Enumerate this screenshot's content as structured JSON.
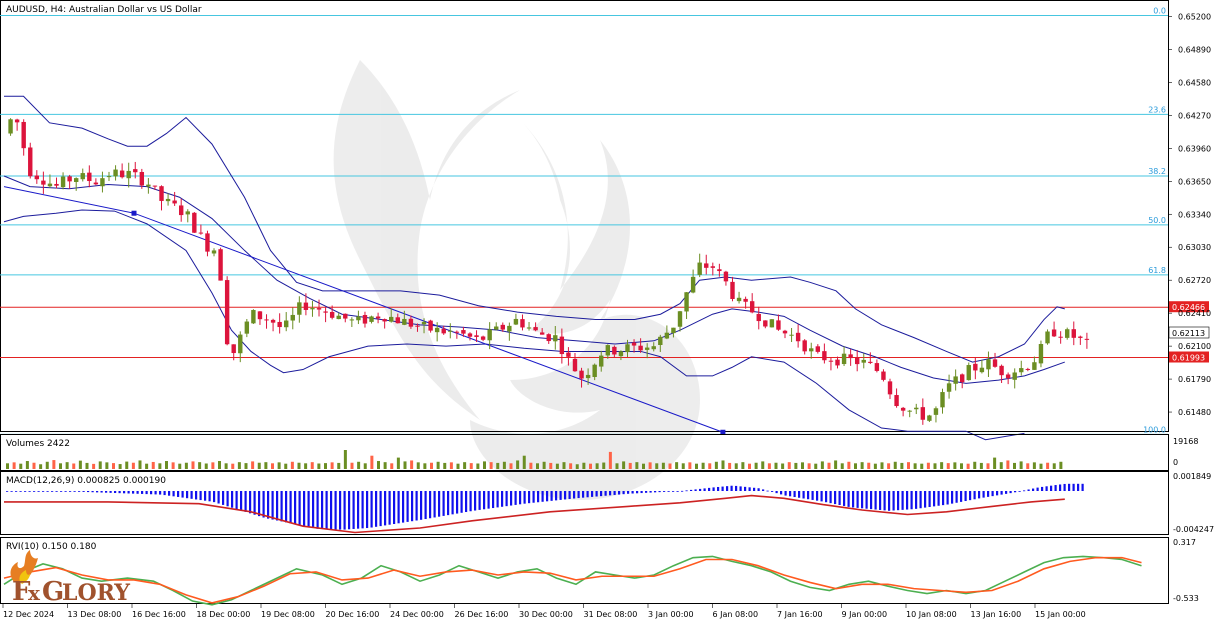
{
  "chart_title": "AUDUSD, H4:  Australian Dollar vs US Dollar",
  "colors": {
    "bull": "#6b8e23",
    "bear": "#dc143c",
    "bollinger": "#1c1c9c",
    "fib": "#46c6e0",
    "sr": "#e32222",
    "macd_hist": "#1010ee",
    "macd_signal": "#cc2222",
    "rvi_main": "#4caf50",
    "rvi_signal": "#ff5a1f",
    "vol_up": "#6b8e23",
    "vol_down": "#ff6347"
  },
  "price_axis": {
    "ticks": [
      "0.65200",
      "0.64890",
      "0.64580",
      "0.64270",
      "0.63960",
      "0.63650",
      "0.63340",
      "0.63030",
      "0.62720",
      "0.62410",
      "0.62100",
      "0.61790",
      "0.61480"
    ],
    "range": [
      0.6133,
      0.6528
    ]
  },
  "fib_levels": [
    {
      "label": "0.0",
      "price": 0.6521
    },
    {
      "label": "23.6",
      "price": 0.6428
    },
    {
      "label": "38.2",
      "price": 0.637
    },
    {
      "label": "50.0",
      "price": 0.6324
    },
    {
      "label": "61.8",
      "price": 0.6277
    },
    {
      "label": "100.0",
      "price": 0.6127
    }
  ],
  "sr_levels": [
    {
      "label": "0.62466",
      "price": 0.62466
    },
    {
      "label": "0.61993",
      "price": 0.61993
    }
  ],
  "current_price": "0.62113",
  "x_labels": [
    "12 Dec 2024",
    "13 Dec 08:00",
    "16 Dec 16:00",
    "18 Dec 00:00",
    "19 Dec 08:00",
    "20 Dec 16:00",
    "24 Dec 00:00",
    "26 Dec 16:00",
    "30 Dec 00:00",
    "31 Dec 08:00",
    "3 Jan 00:00",
    "6 Jan 08:00",
    "7 Jan 16:00",
    "9 Jan 00:00",
    "10 Jan 08:00",
    "13 Jan 16:00",
    "15 Jan 00:00"
  ],
  "volume_pane": {
    "label": "Volumes 2422",
    "ticks": [
      "19168",
      "0"
    ]
  },
  "macd_pane": {
    "label": "MACD(12,26,9) 0.000825 0.000190",
    "ticks": [
      "0.001849",
      "-0.004247"
    ]
  },
  "rvi_pane": {
    "label": "RVI(10) 0.150 0.180",
    "ticks": [
      "0.317",
      "-0.533"
    ]
  },
  "logo": {
    "text": "FxGlory"
  },
  "chart_data": {
    "type": "candlestick",
    "title": "AUDUSD, H4:  Australian Dollar vs US Dollar",
    "x_range": [
      "12 Dec 2024",
      "15 Jan 00:00"
    ],
    "ylim": [
      0.6133,
      0.6528
    ],
    "price_path": [
      [
        0,
        0.641
      ],
      [
        8,
        0.643
      ],
      [
        20,
        0.6375
      ],
      [
        40,
        0.636
      ],
      [
        55,
        0.637
      ],
      [
        70,
        0.6365
      ],
      [
        80,
        0.6372
      ],
      [
        95,
        0.6372
      ],
      [
        110,
        0.6365
      ],
      [
        120,
        0.6348
      ],
      [
        140,
        0.6335
      ],
      [
        155,
        0.6305
      ],
      [
        165,
        0.63
      ],
      [
        170,
        0.6225
      ],
      [
        175,
        0.62
      ],
      [
        190,
        0.624
      ],
      [
        205,
        0.6235
      ],
      [
        215,
        0.6225
      ],
      [
        230,
        0.625
      ],
      [
        250,
        0.6242
      ],
      [
        270,
        0.6232
      ],
      [
        290,
        0.624
      ],
      [
        310,
        0.6232
      ],
      [
        330,
        0.6225
      ],
      [
        350,
        0.6222
      ],
      [
        365,
        0.6215
      ],
      [
        380,
        0.6225
      ],
      [
        395,
        0.6235
      ],
      [
        410,
        0.6222
      ],
      [
        425,
        0.6218
      ],
      [
        435,
        0.6195
      ],
      [
        445,
        0.618
      ],
      [
        460,
        0.6205
      ],
      [
        480,
        0.6208
      ],
      [
        500,
        0.621
      ],
      [
        515,
        0.623
      ],
      [
        525,
        0.626
      ],
      [
        535,
        0.6285
      ],
      [
        545,
        0.6285
      ],
      [
        555,
        0.627
      ],
      [
        565,
        0.625
      ],
      [
        580,
        0.624
      ],
      [
        595,
        0.6225
      ],
      [
        610,
        0.6218
      ],
      [
        625,
        0.62
      ],
      [
        640,
        0.6198
      ],
      [
        660,
        0.6195
      ],
      [
        675,
        0.6185
      ],
      [
        685,
        0.616
      ],
      [
        695,
        0.615
      ],
      [
        705,
        0.6145
      ],
      [
        715,
        0.6145
      ],
      [
        725,
        0.617
      ],
      [
        740,
        0.6185
      ],
      [
        755,
        0.6195
      ],
      [
        770,
        0.6185
      ],
      [
        785,
        0.619
      ],
      [
        795,
        0.62
      ],
      [
        805,
        0.6225
      ],
      [
        815,
        0.6222
      ],
      [
        825,
        0.6218
      ],
      [
        833,
        0.6211
      ]
    ],
    "bollinger_upper": [
      [
        0,
        0.6445
      ],
      [
        15,
        0.6445
      ],
      [
        35,
        0.642
      ],
      [
        60,
        0.6415
      ],
      [
        80,
        0.6405
      ],
      [
        95,
        0.6398
      ],
      [
        110,
        0.6398
      ],
      [
        125,
        0.641
      ],
      [
        140,
        0.6425
      ],
      [
        160,
        0.64
      ],
      [
        185,
        0.635
      ],
      [
        205,
        0.63
      ],
      [
        225,
        0.627
      ],
      [
        245,
        0.6262
      ],
      [
        275,
        0.6262
      ],
      [
        305,
        0.6262
      ],
      [
        335,
        0.6258
      ],
      [
        365,
        0.6248
      ],
      [
        395,
        0.6242
      ],
      [
        425,
        0.6238
      ],
      [
        455,
        0.6235
      ],
      [
        485,
        0.6235
      ],
      [
        505,
        0.624
      ],
      [
        520,
        0.625
      ],
      [
        535,
        0.6272
      ],
      [
        555,
        0.6275
      ],
      [
        575,
        0.6272
      ],
      [
        605,
        0.6275
      ],
      [
        620,
        0.627
      ],
      [
        640,
        0.6262
      ],
      [
        655,
        0.6245
      ],
      [
        675,
        0.623
      ],
      [
        700,
        0.6218
      ],
      [
        725,
        0.6205
      ],
      [
        745,
        0.6195
      ],
      [
        765,
        0.62
      ],
      [
        785,
        0.6212
      ],
      [
        800,
        0.6235
      ],
      [
        810,
        0.6247
      ],
      [
        816,
        0.6245
      ]
    ],
    "bollinger_middle": [
      [
        0,
        0.637
      ],
      [
        20,
        0.636
      ],
      [
        50,
        0.6358
      ],
      [
        80,
        0.6362
      ],
      [
        110,
        0.636
      ],
      [
        135,
        0.635
      ],
      [
        160,
        0.633
      ],
      [
        185,
        0.63
      ],
      [
        210,
        0.6272
      ],
      [
        235,
        0.6255
      ],
      [
        260,
        0.624
      ],
      [
        290,
        0.6235
      ],
      [
        320,
        0.623
      ],
      [
        350,
        0.6228
      ],
      [
        380,
        0.6225
      ],
      [
        410,
        0.6218
      ],
      [
        440,
        0.6215
      ],
      [
        470,
        0.6212
      ],
      [
        500,
        0.6215
      ],
      [
        520,
        0.6225
      ],
      [
        545,
        0.624
      ],
      [
        560,
        0.6245
      ],
      [
        580,
        0.6242
      ],
      [
        600,
        0.6238
      ],
      [
        620,
        0.6225
      ],
      [
        645,
        0.621
      ],
      [
        670,
        0.62
      ],
      [
        690,
        0.619
      ],
      [
        715,
        0.618
      ],
      [
        740,
        0.6175
      ],
      [
        765,
        0.6178
      ],
      [
        785,
        0.6182
      ],
      [
        800,
        0.6188
      ],
      [
        816,
        0.6195
      ]
    ],
    "bollinger_lower": [
      [
        0,
        0.6327
      ],
      [
        15,
        0.6332
      ],
      [
        40,
        0.6335
      ],
      [
        60,
        0.6338
      ],
      [
        85,
        0.6337
      ],
      [
        110,
        0.6325
      ],
      [
        140,
        0.63
      ],
      [
        160,
        0.626
      ],
      [
        175,
        0.6225
      ],
      [
        190,
        0.6205
      ],
      [
        205,
        0.6192
      ],
      [
        215,
        0.6185
      ],
      [
        230,
        0.6188
      ],
      [
        250,
        0.62
      ],
      [
        280,
        0.621
      ],
      [
        310,
        0.6212
      ],
      [
        340,
        0.621
      ],
      [
        370,
        0.6212
      ],
      [
        400,
        0.6208
      ],
      [
        430,
        0.6205
      ],
      [
        460,
        0.6205
      ],
      [
        490,
        0.6205
      ],
      [
        505,
        0.62
      ],
      [
        525,
        0.6182
      ],
      [
        545,
        0.6182
      ],
      [
        560,
        0.619
      ],
      [
        575,
        0.62
      ],
      [
        600,
        0.6195
      ],
      [
        625,
        0.6175
      ],
      [
        650,
        0.615
      ],
      [
        675,
        0.6133
      ],
      [
        695,
        0.613
      ],
      [
        715,
        0.613
      ],
      [
        740,
        0.613
      ],
      [
        755,
        0.6122
      ],
      [
        770,
        0.6125
      ],
      [
        785,
        0.6128
      ]
    ],
    "trendline": [
      [
        0,
        0.636
      ],
      [
        100,
        0.6335
      ],
      [
        553,
        0.6129
      ]
    ],
    "volume_heights": [
      0.3,
      0.35,
      0.28,
      0.42,
      0.33,
      0.25,
      0.38,
      0.47,
      0.3,
      0.36,
      0.29,
      0.44,
      0.32,
      0.27,
      0.4,
      0.35,
      0.31,
      0.26,
      0.39,
      0.33,
      0.45,
      0.28,
      0.37,
      0.3,
      0.42,
      0.35,
      0.28,
      0.33,
      0.4,
      0.36,
      0.29,
      0.35,
      0.42,
      0.3,
      0.28,
      0.36,
      0.31,
      0.4,
      0.33,
      0.36,
      0.3,
      0.35,
      0.28,
      0.38,
      0.33,
      0.3,
      0.36,
      0.29,
      0.31,
      0.35,
      0.32,
      1.0,
      0.33,
      0.38,
      0.3,
      0.7,
      0.42,
      0.36,
      0.3,
      0.6,
      0.4,
      0.45,
      0.35,
      0.3,
      0.33,
      0.38,
      0.32,
      0.35,
      0.28,
      0.36,
      0.31,
      0.29,
      0.4,
      0.36,
      0.32,
      0.38,
      0.3,
      0.45,
      0.7,
      0.33,
      0.3,
      0.38,
      0.32,
      0.28,
      0.36,
      0.3,
      0.25,
      0.33,
      0.28,
      0.3,
      0.34,
      0.9,
      0.3,
      0.4,
      0.32,
      0.36,
      0.28,
      0.35,
      0.3,
      0.33,
      0.29,
      0.36,
      0.3,
      0.35,
      0.28,
      0.33,
      0.3,
      0.38,
      0.45,
      0.32,
      0.3,
      0.36,
      0.28,
      0.33,
      0.4,
      0.3,
      0.33,
      0.29,
      0.36,
      0.32,
      0.35,
      0.3,
      0.28,
      0.4,
      0.33,
      0.45,
      0.3,
      0.38,
      0.3,
      0.36,
      0.33,
      0.28,
      0.35,
      0.3,
      0.38,
      0.32,
      0.36,
      0.3,
      0.28,
      0.33,
      0.3,
      0.36,
      0.31,
      0.35,
      0.3,
      0.28,
      0.38,
      0.32,
      0.3,
      0.6,
      0.36,
      0.45,
      0.32,
      0.4,
      0.3,
      0.35,
      0.28,
      0.33,
      0.3,
      0.38
    ],
    "macd_hist_path": [
      [
        0,
        0.0
      ],
      [
        40,
        0.0
      ],
      [
        80,
        -0.0002
      ],
      [
        120,
        -0.0004
      ],
      [
        160,
        -0.0012
      ],
      [
        200,
        -0.003
      ],
      [
        240,
        -0.0042
      ],
      [
        260,
        -0.0043
      ],
      [
        280,
        -0.0041
      ],
      [
        320,
        -0.0032
      ],
      [
        360,
        -0.0022
      ],
      [
        400,
        -0.0014
      ],
      [
        440,
        -0.0008
      ],
      [
        480,
        -0.0003
      ],
      [
        520,
        0.0
      ],
      [
        545,
        0.0004
      ],
      [
        560,
        0.0006
      ],
      [
        580,
        0.0003
      ],
      [
        600,
        -0.0005
      ],
      [
        630,
        -0.0012
      ],
      [
        650,
        -0.0018
      ],
      [
        680,
        -0.0022
      ],
      [
        700,
        -0.002
      ],
      [
        725,
        -0.0015
      ],
      [
        750,
        -0.0008
      ],
      [
        775,
        -0.0002
      ],
      [
        795,
        0.0004
      ],
      [
        810,
        0.0007
      ],
      [
        816,
        0.0008
      ]
    ],
    "macd_signal": [
      [
        0,
        -0.0001
      ],
      [
        80,
        -0.0001
      ],
      [
        150,
        -0.0003
      ],
      [
        190,
        -0.0012
      ],
      [
        230,
        -0.0028
      ],
      [
        270,
        -0.0035
      ],
      [
        320,
        -0.003
      ],
      [
        360,
        -0.0022
      ],
      [
        420,
        -0.0012
      ],
      [
        480,
        -0.0006
      ],
      [
        520,
        -0.0002
      ],
      [
        555,
        0.0003
      ],
      [
        575,
        0.0006
      ],
      [
        600,
        0.0003
      ],
      [
        630,
        -0.0004
      ],
      [
        660,
        -0.001
      ],
      [
        695,
        -0.0015
      ],
      [
        725,
        -0.0012
      ],
      [
        760,
        -0.0006
      ],
      [
        790,
        -0.0001
      ],
      [
        816,
        0.0002
      ]
    ],
    "rvi_main": [
      [
        0,
        -0.15
      ],
      [
        15,
        0.05
      ],
      [
        30,
        0.18
      ],
      [
        45,
        0.1
      ],
      [
        60,
        -0.05
      ],
      [
        75,
        -0.1
      ],
      [
        95,
        -0.05
      ],
      [
        115,
        -0.1
      ],
      [
        130,
        -0.25
      ],
      [
        145,
        -0.42
      ],
      [
        160,
        -0.48
      ],
      [
        175,
        -0.4
      ],
      [
        190,
        -0.25
      ],
      [
        210,
        -0.05
      ],
      [
        225,
        0.1
      ],
      [
        245,
        0.0
      ],
      [
        260,
        -0.15
      ],
      [
        275,
        -0.05
      ],
      [
        290,
        0.15
      ],
      [
        305,
        0.05
      ],
      [
        320,
        -0.1
      ],
      [
        335,
        0.0
      ],
      [
        350,
        0.15
      ],
      [
        365,
        0.05
      ],
      [
        380,
        -0.05
      ],
      [
        395,
        0.05
      ],
      [
        410,
        0.1
      ],
      [
        425,
        -0.05
      ],
      [
        440,
        -0.15
      ],
      [
        455,
        0.05
      ],
      [
        470,
        0.0
      ],
      [
        485,
        -0.05
      ],
      [
        500,
        0.0
      ],
      [
        515,
        0.15
      ],
      [
        530,
        0.28
      ],
      [
        545,
        0.3
      ],
      [
        560,
        0.22
      ],
      [
        575,
        0.15
      ],
      [
        590,
        0.05
      ],
      [
        605,
        -0.1
      ],
      [
        620,
        -0.2
      ],
      [
        635,
        -0.25
      ],
      [
        650,
        -0.15
      ],
      [
        665,
        -0.1
      ],
      [
        680,
        -0.18
      ],
      [
        695,
        -0.25
      ],
      [
        710,
        -0.3
      ],
      [
        725,
        -0.25
      ],
      [
        740,
        -0.3
      ],
      [
        755,
        -0.25
      ],
      [
        770,
        -0.1
      ],
      [
        785,
        0.05
      ],
      [
        800,
        0.2
      ],
      [
        815,
        0.28
      ],
      [
        830,
        0.3
      ],
      [
        845,
        0.28
      ],
      [
        860,
        0.25
      ],
      [
        875,
        0.15
      ]
    ],
    "rvi_signal": [
      [
        0,
        -0.05
      ],
      [
        20,
        0.05
      ],
      [
        40,
        0.12
      ],
      [
        60,
        0.0
      ],
      [
        80,
        -0.08
      ],
      [
        100,
        -0.08
      ],
      [
        120,
        -0.15
      ],
      [
        140,
        -0.32
      ],
      [
        160,
        -0.45
      ],
      [
        180,
        -0.35
      ],
      [
        200,
        -0.18
      ],
      [
        220,
        0.02
      ],
      [
        240,
        0.05
      ],
      [
        260,
        -0.08
      ],
      [
        280,
        -0.05
      ],
      [
        300,
        0.08
      ],
      [
        320,
        -0.02
      ],
      [
        340,
        0.05
      ],
      [
        360,
        0.08
      ],
      [
        380,
        0.0
      ],
      [
        400,
        0.05
      ],
      [
        420,
        0.03
      ],
      [
        440,
        -0.08
      ],
      [
        460,
        -0.02
      ],
      [
        480,
        -0.02
      ],
      [
        500,
        -0.02
      ],
      [
        520,
        0.1
      ],
      [
        540,
        0.25
      ],
      [
        560,
        0.25
      ],
      [
        580,
        0.15
      ],
      [
        600,
        0.0
      ],
      [
        620,
        -0.12
      ],
      [
        640,
        -0.22
      ],
      [
        660,
        -0.15
      ],
      [
        680,
        -0.15
      ],
      [
        700,
        -0.22
      ],
      [
        720,
        -0.25
      ],
      [
        740,
        -0.28
      ],
      [
        760,
        -0.25
      ],
      [
        780,
        -0.1
      ],
      [
        800,
        0.1
      ],
      [
        820,
        0.22
      ],
      [
        840,
        0.28
      ],
      [
        860,
        0.28
      ],
      [
        875,
        0.2
      ]
    ]
  }
}
